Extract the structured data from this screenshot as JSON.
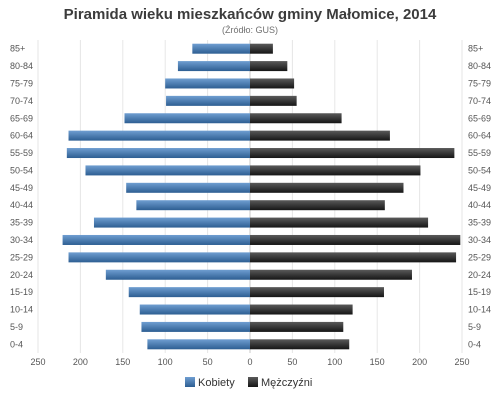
{
  "chart_data": {
    "type": "bar",
    "orientation": "horizontal",
    "layout": "population-pyramid",
    "title": "Piramida wieku mieszkańców gminy Małomice, 2014",
    "subtitle": "(Źródło: GUS)",
    "categories": [
      "85+",
      "80-84",
      "75-79",
      "70-74",
      "65-69",
      "60-64",
      "55-59",
      "50-54",
      "45-49",
      "40-44",
      "35-39",
      "30-34",
      "25-29",
      "20-24",
      "15-19",
      "10-14",
      "5-9",
      "0-4"
    ],
    "series": [
      {
        "name": "Kobiety",
        "side": "left",
        "color": "#3a6ea5",
        "values": [
          68,
          85,
          100,
          99,
          148,
          214,
          216,
          194,
          146,
          134,
          184,
          221,
          214,
          170,
          143,
          130,
          128,
          121
        ]
      },
      {
        "name": "Mężczyźni",
        "side": "right",
        "color": "#2b2b2b",
        "values": [
          27,
          44,
          52,
          55,
          108,
          165,
          241,
          201,
          181,
          159,
          210,
          248,
          243,
          191,
          158,
          121,
          110,
          117
        ]
      }
    ],
    "x_ticks": [
      250,
      200,
      150,
      100,
      50,
      0,
      50,
      100,
      150,
      200,
      250
    ],
    "xlim": [
      -250,
      250
    ],
    "grid": true,
    "legend_position": "bottom-center"
  }
}
